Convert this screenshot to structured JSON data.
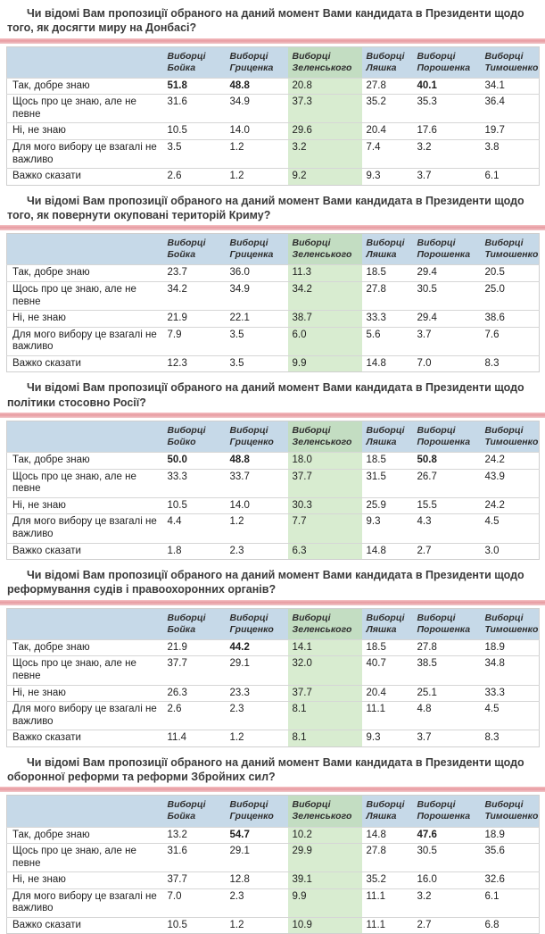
{
  "colors": {
    "header_bg": "#c6d9e8",
    "highlight_header_bg": "#c3ddc2",
    "highlight_cell_bg": "#d8ecd0",
    "title_bar_pink": "#e89ba1",
    "title_color": "#3b3b3b"
  },
  "highlight_col": 2,
  "tables": [
    {
      "title": "Чи відомі Вам пропозиції обраного на даний момент Вами кандидата в Президенти щодо того, як досягти миру на Донбасі?",
      "columns": [
        "Виборці Бойка",
        "Виборці Гриценка",
        "Виборці Зеленського",
        "Виборці Ляшка",
        "Виборці Порошенка",
        "Виборці Тимошенко"
      ],
      "rows": [
        {
          "label": "Так, добре знаю",
          "values": [
            "51.8",
            "48.8",
            "20.8",
            "27.8",
            "40.1",
            "34.1"
          ],
          "bold": [
            0,
            1,
            4
          ]
        },
        {
          "label": "Щось про це знаю, але не певне",
          "values": [
            "31.6",
            "34.9",
            "37.3",
            "35.2",
            "35.3",
            "36.4"
          ],
          "bold": []
        },
        {
          "label": "Ні, не знаю",
          "values": [
            "10.5",
            "14.0",
            "29.6",
            "20.4",
            "17.6",
            "19.7"
          ],
          "bold": []
        },
        {
          "label": "Для мого вибору це взагалі не важливо",
          "values": [
            "3.5",
            "1.2",
            "3.2",
            "7.4",
            "3.2",
            "3.8"
          ],
          "bold": []
        },
        {
          "label": "Важко сказати",
          "values": [
            "2.6",
            "1.2",
            "9.2",
            "9.3",
            "3.7",
            "6.1"
          ],
          "bold": []
        }
      ]
    },
    {
      "title": "Чи відомі Вам пропозиції обраного на даний момент Вами кандидата в Президенти щодо того, як повернути окуповані територій Криму?",
      "columns": [
        "Виборці Бойка",
        "Виборці Гриценка",
        "Виборці Зеленського",
        "Виборці Ляшка",
        "Виборці Порошенка",
        "Виборці Тимошенко"
      ],
      "rows": [
        {
          "label": "Так, добре знаю",
          "values": [
            "23.7",
            "36.0",
            "11.3",
            "18.5",
            "29.4",
            "20.5"
          ],
          "bold": []
        },
        {
          "label": "Щось про це знаю, але не певне",
          "values": [
            "34.2",
            "34.9",
            "34.2",
            "27.8",
            "30.5",
            "25.0"
          ],
          "bold": []
        },
        {
          "label": "Ні, не знаю",
          "values": [
            "21.9",
            "22.1",
            "38.7",
            "33.3",
            "29.4",
            "38.6"
          ],
          "bold": []
        },
        {
          "label": "Для мого вибору це взагалі не важливо",
          "values": [
            "7.9",
            "3.5",
            "6.0",
            "5.6",
            "3.7",
            "7.6"
          ],
          "bold": []
        },
        {
          "label": "Важко сказати",
          "values": [
            "12.3",
            "3.5",
            "9.9",
            "14.8",
            "7.0",
            "8.3"
          ],
          "bold": []
        }
      ]
    },
    {
      "title": "Чи відомі Вам пропозиції обраного на даний момент Вами кандидата в Президенти щодо політики стосовно Росії?",
      "columns": [
        "Виборці Бойко",
        "Виборці Гриценко",
        "Виборці Зеленського",
        "Виборці Ляшка",
        "Виборці Порошенка",
        "Виборці Тимошенко"
      ],
      "rows": [
        {
          "label": "Так, добре знаю",
          "values": [
            "50.0",
            "48.8",
            "18.0",
            "18.5",
            "50.8",
            "24.2"
          ],
          "bold": [
            0,
            1,
            4
          ]
        },
        {
          "label": "Щось про це знаю, але не певне",
          "values": [
            "33.3",
            "33.7",
            "37.7",
            "31.5",
            "26.7",
            "43.9"
          ],
          "bold": []
        },
        {
          "label": "Ні, не знаю",
          "values": [
            "10.5",
            "14.0",
            "30.3",
            "25.9",
            "15.5",
            "24.2"
          ],
          "bold": []
        },
        {
          "label": "Для мого вибору це взагалі не важливо",
          "values": [
            "4.4",
            "1.2",
            "7.7",
            "9.3",
            "4.3",
            "4.5"
          ],
          "bold": []
        },
        {
          "label": "Важко сказати",
          "values": [
            "1.8",
            "2.3",
            "6.3",
            "14.8",
            "2.7",
            "3.0"
          ],
          "bold": []
        }
      ]
    },
    {
      "title": "Чи відомі Вам пропозиції обраного на даний момент Вами кандидата в Президенти щодо реформування судів і правоохоронних органів?",
      "columns": [
        "Виборці Бойка",
        "Виборці Гриценко",
        "Виборці Зеленського",
        "Виборці Ляшка",
        "Виборці Порошенка",
        "Виборці Тимошенко"
      ],
      "rows": [
        {
          "label": "Так, добре знаю",
          "values": [
            "21.9",
            "44.2",
            "14.1",
            "18.5",
            "27.8",
            "18.9"
          ],
          "bold": [
            1
          ]
        },
        {
          "label": "Щось про це знаю, але не певне",
          "values": [
            "37.7",
            "29.1",
            "32.0",
            "40.7",
            "38.5",
            "34.8"
          ],
          "bold": []
        },
        {
          "label": "Ні, не знаю",
          "values": [
            "26.3",
            "23.3",
            "37.7",
            "20.4",
            "25.1",
            "33.3"
          ],
          "bold": []
        },
        {
          "label": "Для мого вибору це взагалі не важливо",
          "values": [
            "2.6",
            "2.3",
            "8.1",
            "11.1",
            "4.8",
            "4.5"
          ],
          "bold": []
        },
        {
          "label": "Важко сказати",
          "values": [
            "11.4",
            "1.2",
            "8.1",
            "9.3",
            "3.7",
            "8.3"
          ],
          "bold": []
        }
      ]
    },
    {
      "title": "Чи відомі Вам пропозиції обраного на даний момент Вами кандидата в Президенти щодо оборонної реформи та реформи Збройних сил?",
      "columns": [
        "Виборці Бойка",
        "Виборці Гриценко",
        "Виборці Зеленського",
        "Виборці Ляшка",
        "Виборці Порошенка",
        "Виборці Тимошенко"
      ],
      "rows": [
        {
          "label": "Так, добре знаю",
          "values": [
            "13.2",
            "54.7",
            "10.2",
            "14.8",
            "47.6",
            "18.9"
          ],
          "bold": [
            1,
            4
          ]
        },
        {
          "label": "Щось про це знаю, але не певне",
          "values": [
            "31.6",
            "29.1",
            "29.9",
            "27.8",
            "30.5",
            "35.6"
          ],
          "bold": []
        },
        {
          "label": "Ні, не знаю",
          "values": [
            "37.7",
            "12.8",
            "39.1",
            "35.2",
            "16.0",
            "32.6"
          ],
          "bold": []
        },
        {
          "label": "Для мого вибору це взагалі не важливо",
          "values": [
            "7.0",
            "2.3",
            "9.9",
            "11.1",
            "3.2",
            "6.1"
          ],
          "bold": []
        },
        {
          "label": "Важко сказати",
          "values": [
            "10.5",
            "1.2",
            "10.9",
            "11.1",
            "2.7",
            "6.8"
          ],
          "bold": []
        }
      ]
    }
  ]
}
